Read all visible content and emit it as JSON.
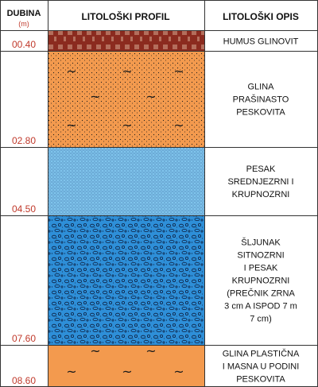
{
  "headers": {
    "depth": "DUBINA",
    "depth_unit": "(m)",
    "profile": "LITOLOŠKI PROFIL",
    "description": "LITOLOŠKI OPIS"
  },
  "layers": [
    {
      "depth_label": "00.40",
      "description": [
        "HUMUS GLINOVIT"
      ],
      "fill": "#8b2b1f",
      "pattern": "humus"
    },
    {
      "depth_label": "02.80",
      "description": [
        "GLINA",
        "PRAŠINASTO",
        "PESKOVITA"
      ],
      "fill": "#f39a4e",
      "pattern": "silty-clay"
    },
    {
      "depth_label": "04.50",
      "description": [
        "PESAK",
        "SREDNJEZRNI I",
        "KRUPNOZRNI"
      ],
      "fill": "#7fc4ec",
      "pattern": "sand"
    },
    {
      "depth_label": "07.60",
      "description": [
        "ŠLJUNAK",
        "SITNOZRNI",
        "I PESAK",
        "KRUPNOZRNI",
        "(PREČNIK ZRNA",
        "3 cm A ISPOD 7 m",
        "7 cm)"
      ],
      "fill": "#2e8fd8",
      "pattern": "gravel"
    },
    {
      "depth_label": "08.60",
      "description": [
        "GLINA PLASTIČNA",
        "I MASNA U PODINI",
        "PESKOVITA"
      ],
      "fill": "#f39a4e",
      "pattern": "plastic-clay"
    }
  ],
  "colors": {
    "depth_text": "#c0392b",
    "grid": "#333333"
  }
}
